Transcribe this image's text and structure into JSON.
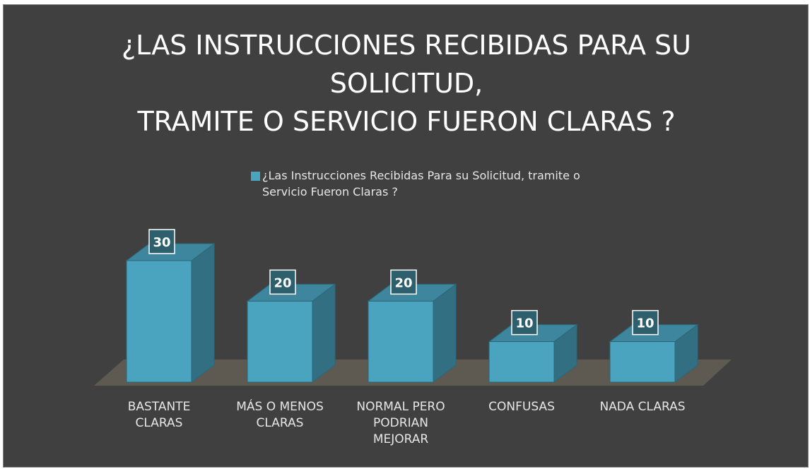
{
  "chart_data": {
    "type": "bar3d",
    "title": [
      "¿LAS INSTRUCCIONES RECIBIDAS PARA SU",
      "SOLICITUD,",
      "TRAMITE O SERVICIO FUERON CLARAS ?"
    ],
    "categories": [
      "BASTANTE CLARAS",
      "MÁS O MENOS CLARAS",
      "NORMAL PERO PODRIAN MEJORAR",
      "CONFUSAS",
      "NADA CLARAS"
    ],
    "series": [
      {
        "name": "¿Las Instrucciones Recibidas Para su Solicitud, tramite o Servicio Fueron Claras ?",
        "color": "#4aa3bf",
        "values": [
          30,
          20,
          20,
          10,
          10
        ]
      }
    ],
    "legend": "top"
  }
}
